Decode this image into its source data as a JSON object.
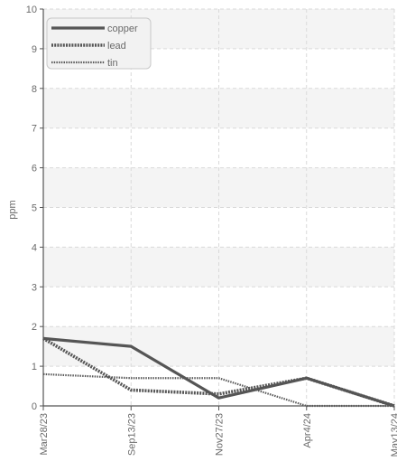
{
  "chart_data": {
    "type": "line",
    "title": "",
    "xlabel": "",
    "ylabel": "ppm",
    "ylim": [
      0,
      10
    ],
    "yticks": [
      0,
      1,
      2,
      3,
      4,
      5,
      6,
      7,
      8,
      9,
      10
    ],
    "categories": [
      "Mar28/23",
      "Sep13/23",
      "Nov27/23",
      "Apr4/24",
      "May13/24"
    ],
    "grid": true,
    "legend_position": "top-left",
    "series": [
      {
        "name": "copper",
        "values": [
          1.7,
          1.5,
          0.2,
          0.7,
          0.0
        ],
        "color": "#555555",
        "style": "solid"
      },
      {
        "name": "lead",
        "values": [
          1.7,
          0.4,
          0.3,
          0.7,
          0.0
        ],
        "color": "#555555",
        "style": "dashed"
      },
      {
        "name": "tin",
        "values": [
          0.8,
          0.7,
          0.7,
          0.0,
          0.0
        ],
        "color": "#5a5a5a",
        "style": "dotted"
      }
    ]
  }
}
